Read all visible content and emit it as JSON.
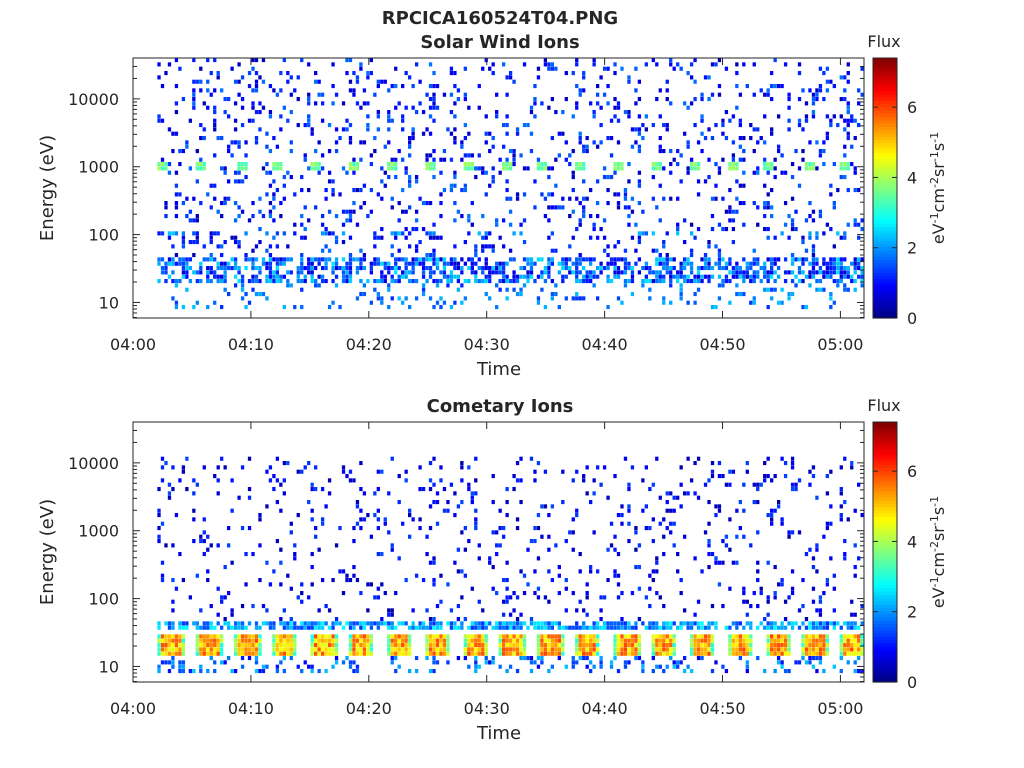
{
  "figure": {
    "title": "RPCICA160524T04.PNG"
  },
  "colormap": {
    "name": "jet",
    "stops": [
      "#00007F",
      "#0000FF",
      "#007FFF",
      "#00FFFF",
      "#7FFF7F",
      "#FFFF00",
      "#FF7F00",
      "#FF0000",
      "#7F0000"
    ]
  },
  "chart_data": [
    {
      "type": "heatmap",
      "title": "Solar Wind Ions",
      "xlabel": "Time",
      "ylabel": "Energy (eV)",
      "x_tick_labels": [
        "04:00",
        "04:10",
        "04:20",
        "04:30",
        "04:40",
        "04:50",
        "05:00"
      ],
      "x_ticks_minutes": [
        0,
        10,
        20,
        30,
        40,
        50,
        60
      ],
      "xlim_minutes": [
        0,
        62
      ],
      "y_scale": "log",
      "y_tick_labels": [
        "10",
        "100",
        "1000",
        "10000"
      ],
      "y_ticks": [
        10,
        100,
        1000,
        10000
      ],
      "ylim": [
        5.9,
        40000
      ],
      "colorbar": {
        "label": "eV-1cm-2sr-1s-1",
        "title": "Flux",
        "tick_labels": [
          "0",
          "2",
          "4",
          "6"
        ],
        "ticks": [
          0,
          2,
          4,
          6
        ],
        "range": [
          0,
          7.4
        ]
      },
      "sweep_minutes": [
        2.5,
        5.7,
        9.3,
        12.3,
        15.6,
        18.7,
        22.0,
        25.2,
        28.4,
        31.7,
        34.8,
        38.0,
        41.2,
        44.5,
        47.7,
        50.9,
        54.0,
        57.3,
        60.5
      ],
      "features": [
        {
          "name": "solar wind beam",
          "energy_ev": 1000,
          "flux": 3.4
        },
        {
          "name": "low energy band",
          "energy_ev": [
            20,
            45
          ],
          "flux": 2.3
        },
        {
          "name": "background",
          "energy_ev": [
            40,
            40000
          ],
          "flux": 1.0
        }
      ]
    },
    {
      "type": "heatmap",
      "title": "Cometary Ions",
      "xlabel": "Time",
      "ylabel": "Energy (eV)",
      "x_tick_labels": [
        "04:00",
        "04:10",
        "04:20",
        "04:30",
        "04:40",
        "04:50",
        "05:00"
      ],
      "x_ticks_minutes": [
        0,
        10,
        20,
        30,
        40,
        50,
        60
      ],
      "xlim_minutes": [
        0,
        62
      ],
      "y_scale": "log",
      "y_tick_labels": [
        "10",
        "100",
        "1000",
        "10000"
      ],
      "y_ticks": [
        10,
        100,
        1000,
        10000
      ],
      "ylim": [
        5.9,
        40000
      ],
      "colorbar": {
        "label": "eV-1cm-2sr-1s-1",
        "title": "Flux",
        "tick_labels": [
          "0",
          "2",
          "4",
          "6"
        ],
        "ticks": [
          0,
          2,
          4,
          6
        ],
        "range": [
          0,
          7.4
        ]
      },
      "sweep_minutes": [
        3.2,
        6.5,
        9.8,
        12.9,
        16.2,
        19.3,
        22.6,
        25.8,
        29.1,
        32.2,
        35.4,
        38.6,
        41.9,
        45.1,
        48.3,
        51.5,
        54.8,
        57.9,
        61.0
      ],
      "features": [
        {
          "name": "cometary ion band",
          "energy_ev": [
            14,
            32
          ],
          "flux": 5.2
        },
        {
          "name": "cutoff band",
          "energy_ev": [
            38,
            45
          ],
          "flux": 2.4
        },
        {
          "name": "background",
          "energy_ev": [
            50,
            15000
          ],
          "flux": 0.8
        }
      ]
    }
  ]
}
